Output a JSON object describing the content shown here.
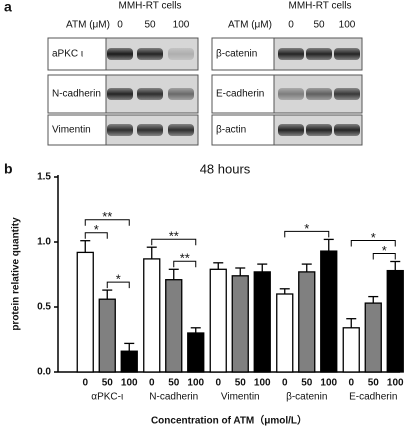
{
  "panels": {
    "a": "a",
    "b": "b"
  },
  "blots": [
    {
      "title": "MMH-RT cells",
      "treatment": "ATM (μM)",
      "doses": [
        "0",
        "50",
        "100"
      ],
      "rows": [
        "aPKC ι",
        "N-cadherin",
        "Vimentin"
      ]
    },
    {
      "title": "MMH-RT cells",
      "treatment": "ATM (μM)",
      "doses": [
        "0",
        "50",
        "100"
      ],
      "rows": [
        "β-catenin",
        "E-cadherin",
        "β-actin"
      ]
    }
  ],
  "chart_data": {
    "type": "bar",
    "title": "48 hours",
    "y_label": "protein relative quantity",
    "x_label": "Concentration of ATM（μmol/L）",
    "categories": [
      "αPKC-ι",
      "N-cadherin",
      "Vimentin",
      "β-catenin",
      "E-cadherin"
    ],
    "series": [
      {
        "name": "0",
        "color": "#ffffff",
        "values": [
          0.92,
          0.87,
          0.79,
          0.6,
          0.34
        ],
        "errors": [
          0.09,
          0.09,
          0.05,
          0.04,
          0.07
        ]
      },
      {
        "name": "50",
        "color": "#808080",
        "values": [
          0.56,
          0.71,
          0.74,
          0.77,
          0.53
        ],
        "errors": [
          0.07,
          0.08,
          0.06,
          0.06,
          0.05
        ]
      },
      {
        "name": "100",
        "color": "#000000",
        "values": [
          0.16,
          0.3,
          0.77,
          0.93,
          0.78
        ],
        "errors": [
          0.06,
          0.04,
          0.06,
          0.09,
          0.07
        ]
      }
    ],
    "ylim": [
      0,
      1.5
    ],
    "yticks": [
      {
        "value": 0,
        "label": "0.0"
      },
      {
        "value": 0.5,
        "label": "0.5"
      },
      {
        "value": 1,
        "label": "1.0"
      },
      {
        "value": 1.5,
        "label": "1.5"
      }
    ],
    "significance": [
      {
        "category": "αPKC-ι",
        "pair": [
          "50",
          "100"
        ],
        "label": "*"
      },
      {
        "category": "αPKC-ι",
        "pair": [
          "0",
          "50"
        ],
        "label": "*"
      },
      {
        "category": "αPKC-ι",
        "pair": [
          "0",
          "100"
        ],
        "label": "**"
      },
      {
        "category": "N-cadherin",
        "pair": [
          "50",
          "100"
        ],
        "label": "**"
      },
      {
        "category": "N-cadherin",
        "pair": [
          "0",
          "100"
        ],
        "label": "**"
      },
      {
        "category": "β-catenin",
        "pair": [
          "0",
          "100"
        ],
        "label": "*"
      },
      {
        "category": "E-cadherin",
        "pair": [
          "50",
          "100"
        ],
        "label": "*"
      },
      {
        "category": "E-cadherin",
        "pair": [
          "0",
          "100"
        ],
        "label": "*"
      }
    ]
  }
}
